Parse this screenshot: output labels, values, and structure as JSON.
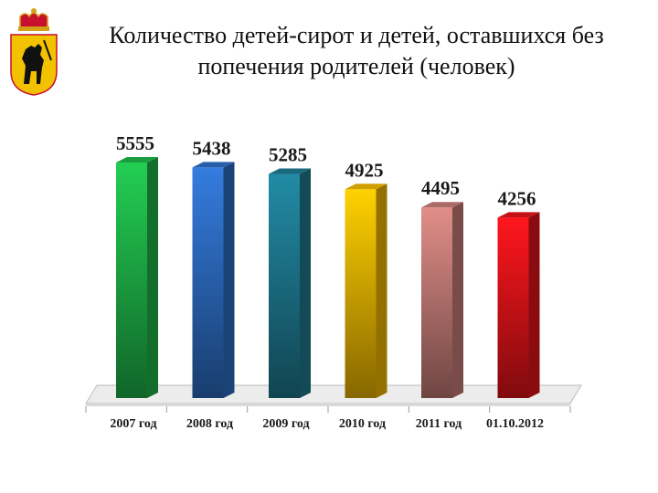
{
  "title_line1": "Количество детей-сирот и детей, оставшихся без",
  "title_line2": "попечения родителей (человек)",
  "chart_data": {
    "type": "bar",
    "title": "Количество детей-сирот и детей, оставшихся без попечения родителей (человек)",
    "categories": [
      "2007 год",
      "2008 год",
      "2009 год",
      "2010 год",
      "2011 год",
      "01.10.2012"
    ],
    "values": [
      5555,
      5438,
      5285,
      4925,
      4495,
      4256
    ],
    "colors": [
      "#1fb84a",
      "#2e6fc7",
      "#1e7c93",
      "#f5bb00",
      "#c97f7a",
      "#e8141a"
    ],
    "ylim": [
      0,
      5555
    ],
    "grid": false,
    "legend": "none"
  }
}
